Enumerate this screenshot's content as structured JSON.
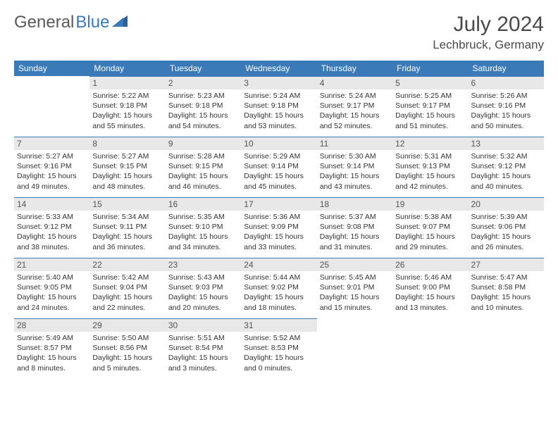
{
  "brand": {
    "name_a": "General",
    "name_b": "Blue"
  },
  "title": "July 2024",
  "location": "Lechbruck, Germany",
  "colors": {
    "header_bg": "#3a7ab8",
    "header_fg": "#ffffff",
    "daynum_bg": "#e8e8e8",
    "daynum_fg": "#555555",
    "cell_border_top": "#3a7ab8",
    "text": "#333333",
    "title_color": "#4a4a4a",
    "logo_gray": "#5a5a5a",
    "logo_blue": "#3a7ab8",
    "page_bg": "#ffffff"
  },
  "weekdays": [
    "Sunday",
    "Monday",
    "Tuesday",
    "Wednesday",
    "Thursday",
    "Friday",
    "Saturday"
  ],
  "month": {
    "year": 2024,
    "month": 7,
    "start_weekday": 1,
    "days_in_month": 31
  },
  "days": {
    "1": {
      "sunrise": "5:22 AM",
      "sunset": "9:18 PM",
      "dl_h": 15,
      "dl_m": 55
    },
    "2": {
      "sunrise": "5:23 AM",
      "sunset": "9:18 PM",
      "dl_h": 15,
      "dl_m": 54
    },
    "3": {
      "sunrise": "5:24 AM",
      "sunset": "9:18 PM",
      "dl_h": 15,
      "dl_m": 53
    },
    "4": {
      "sunrise": "5:24 AM",
      "sunset": "9:17 PM",
      "dl_h": 15,
      "dl_m": 52
    },
    "5": {
      "sunrise": "5:25 AM",
      "sunset": "9:17 PM",
      "dl_h": 15,
      "dl_m": 51
    },
    "6": {
      "sunrise": "5:26 AM",
      "sunset": "9:16 PM",
      "dl_h": 15,
      "dl_m": 50
    },
    "7": {
      "sunrise": "5:27 AM",
      "sunset": "9:16 PM",
      "dl_h": 15,
      "dl_m": 49
    },
    "8": {
      "sunrise": "5:27 AM",
      "sunset": "9:15 PM",
      "dl_h": 15,
      "dl_m": 48
    },
    "9": {
      "sunrise": "5:28 AM",
      "sunset": "9:15 PM",
      "dl_h": 15,
      "dl_m": 46
    },
    "10": {
      "sunrise": "5:29 AM",
      "sunset": "9:14 PM",
      "dl_h": 15,
      "dl_m": 45
    },
    "11": {
      "sunrise": "5:30 AM",
      "sunset": "9:14 PM",
      "dl_h": 15,
      "dl_m": 43
    },
    "12": {
      "sunrise": "5:31 AM",
      "sunset": "9:13 PM",
      "dl_h": 15,
      "dl_m": 42
    },
    "13": {
      "sunrise": "5:32 AM",
      "sunset": "9:12 PM",
      "dl_h": 15,
      "dl_m": 40
    },
    "14": {
      "sunrise": "5:33 AM",
      "sunset": "9:12 PM",
      "dl_h": 15,
      "dl_m": 38
    },
    "15": {
      "sunrise": "5:34 AM",
      "sunset": "9:11 PM",
      "dl_h": 15,
      "dl_m": 36
    },
    "16": {
      "sunrise": "5:35 AM",
      "sunset": "9:10 PM",
      "dl_h": 15,
      "dl_m": 34
    },
    "17": {
      "sunrise": "5:36 AM",
      "sunset": "9:09 PM",
      "dl_h": 15,
      "dl_m": 33
    },
    "18": {
      "sunrise": "5:37 AM",
      "sunset": "9:08 PM",
      "dl_h": 15,
      "dl_m": 31
    },
    "19": {
      "sunrise": "5:38 AM",
      "sunset": "9:07 PM",
      "dl_h": 15,
      "dl_m": 29
    },
    "20": {
      "sunrise": "5:39 AM",
      "sunset": "9:06 PM",
      "dl_h": 15,
      "dl_m": 26
    },
    "21": {
      "sunrise": "5:40 AM",
      "sunset": "9:05 PM",
      "dl_h": 15,
      "dl_m": 24
    },
    "22": {
      "sunrise": "5:42 AM",
      "sunset": "9:04 PM",
      "dl_h": 15,
      "dl_m": 22
    },
    "23": {
      "sunrise": "5:43 AM",
      "sunset": "9:03 PM",
      "dl_h": 15,
      "dl_m": 20
    },
    "24": {
      "sunrise": "5:44 AM",
      "sunset": "9:02 PM",
      "dl_h": 15,
      "dl_m": 18
    },
    "25": {
      "sunrise": "5:45 AM",
      "sunset": "9:01 PM",
      "dl_h": 15,
      "dl_m": 15
    },
    "26": {
      "sunrise": "5:46 AM",
      "sunset": "9:00 PM",
      "dl_h": 15,
      "dl_m": 13
    },
    "27": {
      "sunrise": "5:47 AM",
      "sunset": "8:58 PM",
      "dl_h": 15,
      "dl_m": 10
    },
    "28": {
      "sunrise": "5:49 AM",
      "sunset": "8:57 PM",
      "dl_h": 15,
      "dl_m": 8
    },
    "29": {
      "sunrise": "5:50 AM",
      "sunset": "8:56 PM",
      "dl_h": 15,
      "dl_m": 5
    },
    "30": {
      "sunrise": "5:51 AM",
      "sunset": "8:54 PM",
      "dl_h": 15,
      "dl_m": 3
    },
    "31": {
      "sunrise": "5:52 AM",
      "sunset": "8:53 PM",
      "dl_h": 15,
      "dl_m": 0
    }
  },
  "labels": {
    "sunrise_prefix": "Sunrise: ",
    "sunset_prefix": "Sunset: ",
    "daylight_prefix": "Daylight: ",
    "hours_word": " hours",
    "and_word": "and ",
    "minutes_word": " minutes."
  }
}
